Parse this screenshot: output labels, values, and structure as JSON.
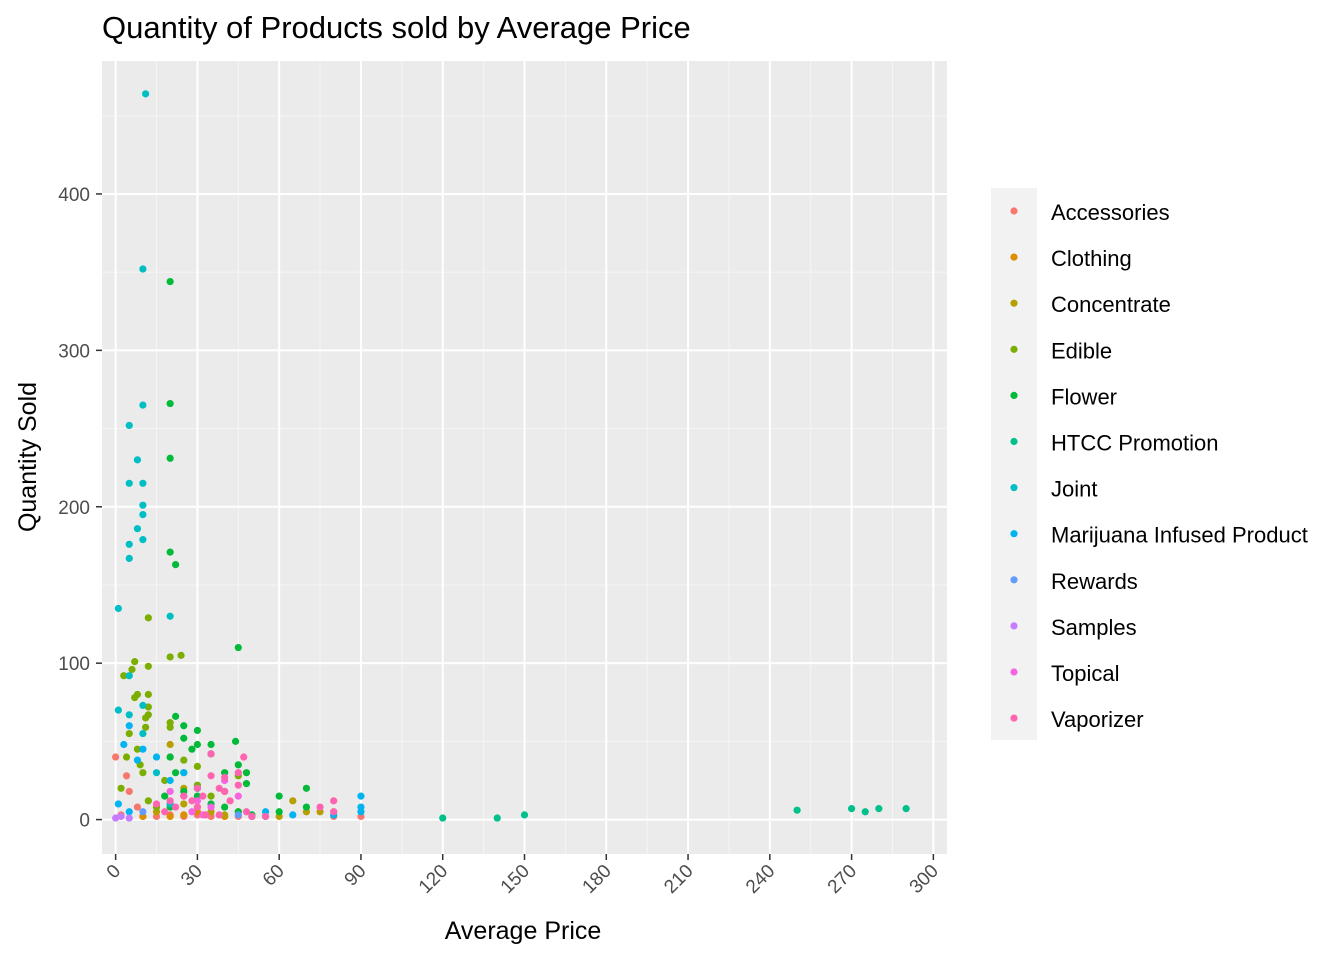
{
  "chart_data": {
    "type": "scatter",
    "title": "Quantity of Products sold by Average Price",
    "xlabel": "Average Price",
    "ylabel": "Quantity Sold",
    "xlim": [
      -5,
      305
    ],
    "ylim": [
      -22,
      485
    ],
    "x_ticks": [
      0,
      30,
      60,
      90,
      120,
      150,
      180,
      210,
      240,
      270,
      300
    ],
    "y_ticks": [
      0,
      100,
      200,
      300,
      400
    ],
    "grid": true,
    "legend_position": "right",
    "series": [
      {
        "name": "Accessories",
        "color": "#F8766D",
        "points": [
          [
            0,
            40
          ],
          [
            2,
            3
          ],
          [
            4,
            28
          ],
          [
            5,
            18
          ],
          [
            8,
            8
          ],
          [
            10,
            2
          ],
          [
            15,
            2
          ],
          [
            20,
            3
          ],
          [
            25,
            2
          ],
          [
            30,
            3
          ],
          [
            35,
            2
          ],
          [
            40,
            2
          ],
          [
            45,
            2
          ],
          [
            50,
            2
          ],
          [
            55,
            2
          ],
          [
            80,
            2
          ],
          [
            90,
            2
          ]
        ]
      },
      {
        "name": "Clothing",
        "color": "#DE8C00",
        "points": [
          [
            10,
            2
          ],
          [
            20,
            2
          ],
          [
            25,
            3
          ],
          [
            30,
            5
          ],
          [
            40,
            2
          ]
        ]
      },
      {
        "name": "Concentrate",
        "color": "#B79F00",
        "points": [
          [
            15,
            5
          ],
          [
            20,
            10
          ],
          [
            20,
            40
          ],
          [
            20,
            48
          ],
          [
            25,
            10
          ],
          [
            25,
            20
          ],
          [
            30,
            8
          ],
          [
            35,
            5
          ],
          [
            40,
            3
          ],
          [
            45,
            5
          ],
          [
            50,
            2
          ],
          [
            60,
            2
          ],
          [
            65,
            12
          ],
          [
            70,
            5
          ],
          [
            75,
            5
          ],
          [
            80,
            5
          ]
        ]
      },
      {
        "name": "Edible",
        "color": "#7CAE00",
        "points": [
          [
            2,
            20
          ],
          [
            3,
            92
          ],
          [
            4,
            40
          ],
          [
            5,
            55
          ],
          [
            6,
            96
          ],
          [
            7,
            101
          ],
          [
            7,
            78
          ],
          [
            8,
            80
          ],
          [
            8,
            45
          ],
          [
            9,
            35
          ],
          [
            10,
            30
          ],
          [
            11,
            65
          ],
          [
            11,
            59
          ],
          [
            12,
            129
          ],
          [
            12,
            98
          ],
          [
            12,
            80
          ],
          [
            12,
            72
          ],
          [
            12,
            67
          ],
          [
            12,
            12
          ],
          [
            15,
            8
          ],
          [
            18,
            25
          ],
          [
            20,
            104
          ],
          [
            20,
            62
          ],
          [
            20,
            59
          ],
          [
            24,
            105
          ],
          [
            25,
            38
          ],
          [
            25,
            30
          ],
          [
            30,
            34
          ],
          [
            30,
            22
          ],
          [
            35,
            15
          ],
          [
            40,
            18
          ],
          [
            45,
            28
          ]
        ]
      },
      {
        "name": "Flower",
        "color": "#00BA38",
        "points": [
          [
            20,
            344
          ],
          [
            20,
            266
          ],
          [
            20,
            231
          ],
          [
            20,
            171
          ],
          [
            22,
            163
          ],
          [
            45,
            110
          ],
          [
            22,
            66
          ],
          [
            25,
            60
          ],
          [
            25,
            52
          ],
          [
            28,
            45
          ],
          [
            30,
            57
          ],
          [
            30,
            48
          ],
          [
            35,
            48
          ],
          [
            35,
            42
          ],
          [
            40,
            30
          ],
          [
            44,
            50
          ],
          [
            45,
            35
          ],
          [
            48,
            30
          ],
          [
            48,
            23
          ],
          [
            30,
            20
          ],
          [
            30,
            15
          ],
          [
            35,
            10
          ],
          [
            40,
            8
          ],
          [
            45,
            5
          ],
          [
            50,
            3
          ],
          [
            60,
            15
          ],
          [
            60,
            5
          ],
          [
            70,
            8
          ],
          [
            70,
            20
          ],
          [
            20,
            40
          ],
          [
            22,
            30
          ],
          [
            25,
            18
          ],
          [
            18,
            15
          ],
          [
            20,
            8
          ]
        ]
      },
      {
        "name": "HTCC Promotion",
        "color": "#00C08B",
        "points": [
          [
            120,
            1
          ],
          [
            140,
            1
          ],
          [
            150,
            3
          ],
          [
            250,
            6
          ],
          [
            270,
            7
          ],
          [
            275,
            5
          ],
          [
            280,
            7
          ],
          [
            290,
            7
          ]
        ]
      },
      {
        "name": "Joint",
        "color": "#00BFC4",
        "points": [
          [
            11,
            464
          ],
          [
            10,
            352
          ],
          [
            10,
            265
          ],
          [
            5,
            252
          ],
          [
            8,
            230
          ],
          [
            5,
            215
          ],
          [
            10,
            215
          ],
          [
            10,
            201
          ],
          [
            10,
            195
          ],
          [
            8,
            186
          ],
          [
            5,
            176
          ],
          [
            10,
            179
          ],
          [
            5,
            167
          ],
          [
            1,
            135
          ],
          [
            20,
            130
          ],
          [
            1,
            70
          ],
          [
            5,
            67
          ],
          [
            5,
            92
          ],
          [
            10,
            73
          ],
          [
            10,
            55
          ],
          [
            15,
            30
          ],
          [
            20,
            10
          ]
        ]
      },
      {
        "name": "Marijuana Infused Product",
        "color": "#00B4F0",
        "points": [
          [
            90,
            15
          ],
          [
            90,
            8
          ],
          [
            90,
            5
          ],
          [
            80,
            3
          ],
          [
            65,
            3
          ],
          [
            55,
            5
          ],
          [
            55,
            2
          ],
          [
            20,
            25
          ],
          [
            25,
            30
          ],
          [
            30,
            20
          ],
          [
            10,
            45
          ],
          [
            15,
            40
          ],
          [
            5,
            60
          ],
          [
            8,
            38
          ],
          [
            1,
            10
          ],
          [
            5,
            5
          ],
          [
            3,
            48
          ]
        ]
      },
      {
        "name": "Rewards",
        "color": "#619CFF",
        "points": [
          [
            45,
            3
          ],
          [
            50,
            2
          ],
          [
            10,
            5
          ]
        ]
      },
      {
        "name": "Samples",
        "color": "#C77CFF",
        "points": [
          [
            0,
            1
          ],
          [
            2,
            2
          ],
          [
            5,
            1
          ]
        ]
      },
      {
        "name": "Topical",
        "color": "#F564E3",
        "points": [
          [
            20,
            18
          ],
          [
            25,
            15
          ],
          [
            30,
            12
          ],
          [
            35,
            8
          ],
          [
            40,
            25
          ],
          [
            45,
            15
          ],
          [
            28,
            5
          ],
          [
            32,
            3
          ]
        ]
      },
      {
        "name": "Vaporizer",
        "color": "#FF64B0",
        "points": [
          [
            15,
            10
          ],
          [
            18,
            5
          ],
          [
            20,
            12
          ],
          [
            22,
            8
          ],
          [
            25,
            15
          ],
          [
            28,
            12
          ],
          [
            30,
            20
          ],
          [
            32,
            15
          ],
          [
            35,
            28
          ],
          [
            35,
            42
          ],
          [
            38,
            20
          ],
          [
            40,
            27
          ],
          [
            40,
            18
          ],
          [
            42,
            12
          ],
          [
            45,
            30
          ],
          [
            45,
            22
          ],
          [
            47,
            40
          ],
          [
            48,
            5
          ],
          [
            50,
            2
          ],
          [
            55,
            2
          ],
          [
            75,
            8
          ],
          [
            80,
            12
          ],
          [
            80,
            5
          ],
          [
            30,
            8
          ],
          [
            33,
            3
          ],
          [
            38,
            3
          ]
        ]
      }
    ]
  }
}
